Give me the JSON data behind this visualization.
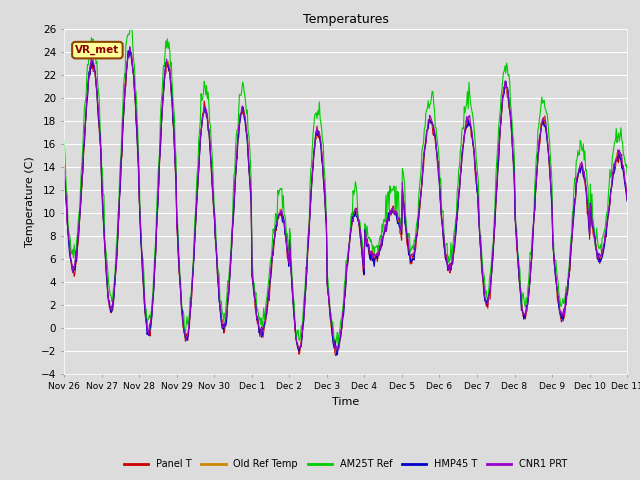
{
  "title": "Temperatures",
  "xlabel": "Time",
  "ylabel": "Temperature (C)",
  "ylim": [
    -4,
    26
  ],
  "yticks": [
    -4,
    -2,
    0,
    2,
    4,
    6,
    8,
    10,
    12,
    14,
    16,
    18,
    20,
    22,
    24,
    26
  ],
  "background_color": "#dcdcdc",
  "plot_bg_color": "#dcdcdc",
  "series": [
    "Panel T",
    "Old Ref Temp",
    "AM25T Ref",
    "HMP45 T",
    "CNR1 PRT"
  ],
  "colors": [
    "#cc0000",
    "#cc8800",
    "#00cc00",
    "#0000cc",
    "#9900cc"
  ],
  "x_tick_labels": [
    "Nov 26",
    "Nov 27",
    "Nov 28",
    "Nov 29",
    "Nov 30",
    "Dec 1",
    "Dec 2",
    "Dec 3",
    "Dec 4",
    "Dec 5",
    "Dec 6",
    "Dec 7",
    "Dec 8",
    "Dec 9",
    "Dec 10",
    "Dec 11"
  ],
  "annotation_text": "VR_met",
  "line_width": 0.8,
  "legend_ncol": 5,
  "n_days": 15,
  "pts_per_day": 48,
  "day_peaks": [
    23,
    24,
    23,
    19,
    19,
    10,
    17,
    10,
    10,
    18,
    18,
    21,
    18,
    14,
    15,
    10
  ],
  "day_mins": [
    5,
    1.5,
    -0.5,
    -1,
    0,
    -0.5,
    -2,
    -2,
    6,
    6,
    5,
    2,
    1,
    1,
    6,
    8
  ],
  "noise_seed": 42
}
